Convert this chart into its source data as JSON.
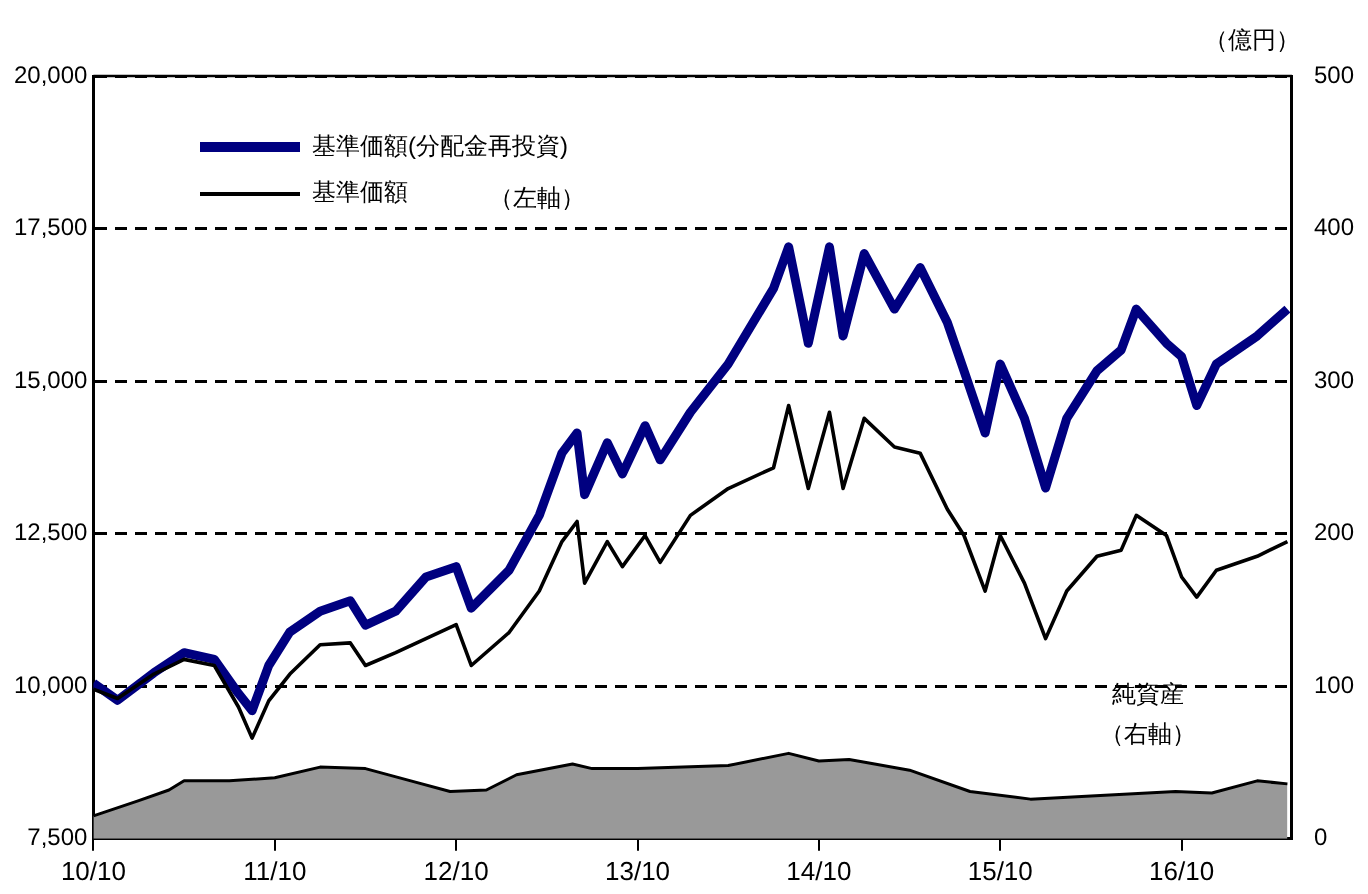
{
  "chart_data": {
    "type": "line",
    "x": [
      "2010-10-01",
      "2010-11-19",
      "2011-02-01",
      "2011-04-01",
      "2011-06-01",
      "2011-07-19",
      "2011-08-16",
      "2011-09-19",
      "2011-11-01",
      "2012-01-01",
      "2012-03-01",
      "2012-04-01",
      "2012-06-01",
      "2012-08-01",
      "2012-10-01",
      "2012-11-01",
      "2013-01-16",
      "2013-03-16",
      "2013-05-01",
      "2013-06-01",
      "2013-06-16",
      "2013-08-01",
      "2013-09-01",
      "2013-10-16",
      "2013-11-16",
      "2014-01-16",
      "2014-04-01",
      "2014-07-01",
      "2014-08-01",
      "2014-09-10",
      "2014-10-22",
      "2014-11-19",
      "2015-01-01",
      "2015-03-01",
      "2015-04-22",
      "2015-06-16",
      "2015-07-19",
      "2015-09-01",
      "2015-10-01",
      "2015-11-19",
      "2016-01-01",
      "2016-02-13",
      "2016-04-13",
      "2016-06-01",
      "2016-07-01",
      "2016-09-01",
      "2016-10-01",
      "2016-11-01",
      "2016-12-10",
      "2017-03-01",
      "2017-05-01"
    ],
    "series": [
      {
        "name": "基準価額(分配金再投資)",
        "color": "#000080",
        "values": [
          10050,
          9770,
          10220,
          10550,
          10440,
          9880,
          9600,
          10340,
          10890,
          11230,
          11400,
          11000,
          11230,
          11790,
          11960,
          11280,
          11900,
          12800,
          13820,
          14150,
          13140,
          13990,
          13480,
          14270,
          13710,
          14490,
          15280,
          16520,
          17200,
          15620,
          17200,
          15740,
          17090,
          16180,
          16860,
          15960,
          15170,
          14150,
          15280,
          14390,
          13250,
          14390,
          15170,
          15510,
          16180,
          15620,
          15400,
          14600,
          15280,
          15740,
          16180
        ]
      },
      {
        "name": "基準価額",
        "color": "#000000",
        "values": [
          9950,
          9800,
          10200,
          10440,
          10340,
          9660,
          9150,
          9760,
          10200,
          10680,
          10710,
          10340,
          10550,
          10780,
          11010,
          10340,
          10880,
          11560,
          12370,
          12700,
          11690,
          12370,
          11960,
          12470,
          12030,
          12800,
          13240,
          13580,
          14600,
          13240,
          14490,
          13240,
          14390,
          13920,
          13820,
          12900,
          12470,
          11560,
          12470,
          11690,
          10780,
          11560,
          12130,
          12230,
          12800,
          12470,
          11790,
          11460,
          11900,
          12130,
          12370
        ]
      },
      {
        "type": "area",
        "axis": "y2",
        "color": "#999999",
        "x": [
          "2010-10-01",
          "2011-01-01",
          "2011-03-01",
          "2011-04-01",
          "2011-07-01",
          "2011-10-01",
          "2012-01-01",
          "2012-04-01",
          "2012-07-01",
          "2012-09-19",
          "2012-12-01",
          "2013-02-01",
          "2013-05-22",
          "2013-07-01",
          "2013-10-01",
          "2014-01-01",
          "2014-04-01",
          "2014-08-01",
          "2014-10-01",
          "2014-12-01",
          "2015-04-01",
          "2015-08-01",
          "2015-12-01",
          "2016-04-01",
          "2016-09-19",
          "2016-12-01",
          "2017-03-01",
          "2017-05-01"
        ],
        "values": [
          15,
          25,
          32,
          38,
          38,
          40,
          47,
          46,
          38,
          31,
          32,
          42,
          49,
          46,
          46,
          47,
          48,
          56,
          51,
          52,
          45,
          31,
          26,
          28,
          31,
          30,
          38,
          36
        ]
      }
    ],
    "xlim": [
      "2010-10-01",
      "2017-05-10"
    ],
    "xticks": [
      {
        "value": "2010-10-01",
        "label": "10/10"
      },
      {
        "value": "2011-10-01",
        "label": "11/10"
      },
      {
        "value": "2012-10-01",
        "label": "12/10"
      },
      {
        "value": "2013-10-01",
        "label": "13/10"
      },
      {
        "value": "2014-10-01",
        "label": "14/10"
      },
      {
        "value": "2015-10-01",
        "label": "15/10"
      },
      {
        "value": "2016-10-01",
        "label": "16/10"
      }
    ],
    "ylim": [
      7500,
      20000
    ],
    "yticks": [
      {
        "value": 7500,
        "label": "7,500"
      },
      {
        "value": 10000,
        "label": "10,000"
      },
      {
        "value": 12500,
        "label": "12,500"
      },
      {
        "value": 15000,
        "label": "15,000"
      },
      {
        "value": 17500,
        "label": "17,500"
      },
      {
        "value": 20000,
        "label": "20,000"
      }
    ],
    "y2lim": [
      0,
      500
    ],
    "y2ticks": [
      0,
      100,
      200,
      300,
      400,
      500
    ],
    "y2label": "（億円）",
    "annotations": [
      "（左軸）",
      "純資産",
      "（右軸）"
    ],
    "grid": "y",
    "legend": "top left",
    "marker": "none"
  }
}
